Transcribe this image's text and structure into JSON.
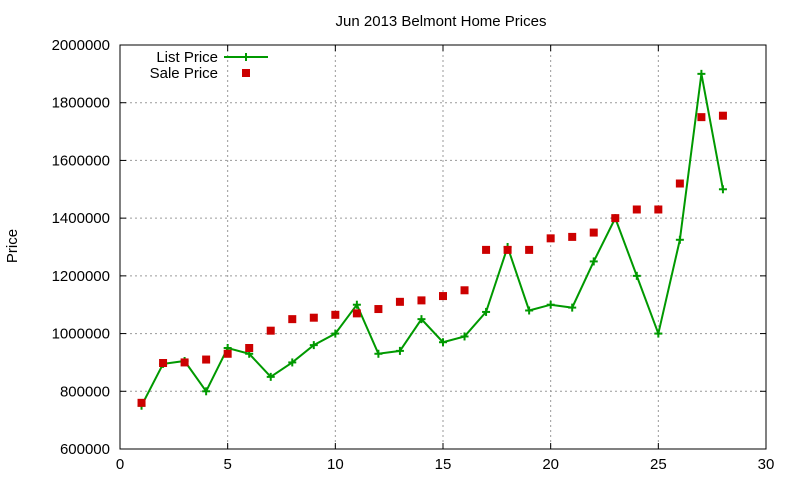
{
  "chart_data": {
    "type": "line",
    "title": "Jun 2013 Belmont Home Prices",
    "xlabel": "",
    "ylabel": "Price",
    "xlim": [
      0,
      30
    ],
    "ylim": [
      600000,
      2000000
    ],
    "x_ticks": [
      0,
      5,
      10,
      15,
      20,
      25,
      30
    ],
    "y_ticks": [
      600000,
      800000,
      1000000,
      1200000,
      1400000,
      1600000,
      1800000,
      2000000
    ],
    "grid": true,
    "legend_position": "top-left",
    "series": [
      {
        "name": "List Price",
        "style": "line+cross",
        "color": "#009900",
        "x": [
          1,
          2,
          3,
          4,
          5,
          6,
          7,
          8,
          9,
          10,
          11,
          12,
          13,
          14,
          15,
          16,
          17,
          18,
          19,
          20,
          21,
          22,
          23,
          24,
          25,
          26,
          27,
          28
        ],
        "values": [
          750000,
          895000,
          905000,
          800000,
          950000,
          930000,
          850000,
          900000,
          960000,
          1000000,
          1100000,
          930000,
          940000,
          1050000,
          970000,
          990000,
          1075000,
          1300000,
          1080000,
          1100000,
          1090000,
          1250000,
          1400000,
          1200000,
          1000000,
          1325000,
          1900000,
          1500000
        ]
      },
      {
        "name": "Sale Price",
        "style": "square",
        "color": "#cc0000",
        "x": [
          1,
          2,
          3,
          4,
          5,
          6,
          7,
          8,
          9,
          10,
          11,
          12,
          13,
          14,
          15,
          16,
          17,
          18,
          19,
          20,
          21,
          22,
          23,
          24,
          25,
          26,
          27,
          28
        ],
        "values": [
          760000,
          898000,
          900000,
          910000,
          930000,
          950000,
          1010000,
          1050000,
          1055000,
          1065000,
          1070000,
          1085000,
          1110000,
          1115000,
          1130000,
          1150000,
          1290000,
          1290000,
          1290000,
          1330000,
          1335000,
          1350000,
          1400000,
          1430000,
          1430000,
          1520000,
          1750000,
          1755000
        ]
      }
    ]
  }
}
